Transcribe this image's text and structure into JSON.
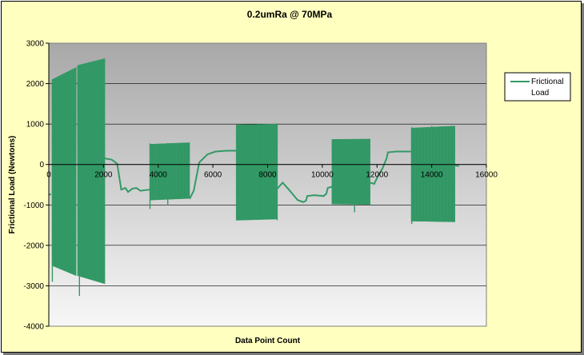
{
  "chart_data": {
    "type": "line",
    "title": "0.2umRa @ 70MPa",
    "xlabel": "Data Point Count",
    "ylabel": "Frictional Load (Newtons)",
    "xlim": [
      0,
      16000
    ],
    "ylim": [
      -4000,
      3000
    ],
    "x_ticks": [
      0,
      2000,
      4000,
      6000,
      8000,
      10000,
      12000,
      14000,
      16000
    ],
    "y_ticks": [
      -4000,
      -3000,
      -2000,
      -1000,
      0,
      1000,
      2000,
      3000
    ],
    "grid": "horizontal",
    "legend_position": "right",
    "series": [
      {
        "name": "Frictional Load",
        "color": "#339966",
        "oscillation_blocks": [
          {
            "x_start": 120,
            "x_end": 1000,
            "upper_start": 2100,
            "upper_end": 2400,
            "lower_start": -2500,
            "lower_end": -2750
          },
          {
            "x_start": 1050,
            "x_end": 2050,
            "upper_start": 2450,
            "upper_end": 2620,
            "lower_start": -2750,
            "lower_end": -2950
          },
          {
            "x_start": 3700,
            "x_end": 5150,
            "upper_start": 500,
            "upper_end": 540,
            "lower_start": -880,
            "lower_end": -840
          },
          {
            "x_start": 6850,
            "x_end": 8350,
            "upper_start": 980,
            "upper_end": 1000,
            "lower_start": -1380,
            "lower_end": -1350
          },
          {
            "x_start": 10350,
            "x_end": 11750,
            "upper_start": 620,
            "upper_end": 630,
            "lower_start": -980,
            "lower_end": -990
          },
          {
            "x_start": 13250,
            "x_end": 14850,
            "upper_start": 900,
            "upper_end": 950,
            "lower_start": -1400,
            "lower_end": -1420
          }
        ],
        "spikes": [
          {
            "x": 130,
            "min": -2900,
            "max": 2100
          },
          {
            "x": 1120,
            "min": -3250,
            "max": 2450
          },
          {
            "x": 3700,
            "min": -1100,
            "max": 520
          },
          {
            "x": 4350,
            "min": -1000,
            "max": 530
          },
          {
            "x": 7680,
            "min": -1250,
            "max": 1000
          },
          {
            "x": 8350,
            "min": -1380,
            "max": 1020
          },
          {
            "x": 11180,
            "min": -1180,
            "max": 630
          },
          {
            "x": 13270,
            "min": -1470,
            "max": 920
          },
          {
            "x": 14000,
            "min": -1350,
            "max": 950
          }
        ],
        "connectors": [
          [
            [
              0,
              -750
            ],
            [
              80,
              -730
            ]
          ],
          [
            [
              2050,
              150
            ],
            [
              2300,
              120
            ],
            [
              2500,
              20
            ],
            [
              2650,
              -620
            ],
            [
              2800,
              -580
            ],
            [
              2900,
              -680
            ],
            [
              3050,
              -600
            ],
            [
              3200,
              -580
            ],
            [
              3350,
              -650
            ],
            [
              3700,
              -620
            ]
          ],
          [
            [
              5150,
              -850
            ],
            [
              5300,
              -650
            ],
            [
              5500,
              50
            ],
            [
              5800,
              250
            ],
            [
              6100,
              320
            ],
            [
              6500,
              340
            ],
            [
              6850,
              340
            ]
          ],
          [
            [
              8350,
              -600
            ],
            [
              8550,
              -450
            ],
            [
              8750,
              -600
            ],
            [
              8900,
              -720
            ],
            [
              9100,
              -880
            ],
            [
              9300,
              -930
            ],
            [
              9400,
              -900
            ],
            [
              9450,
              -780
            ],
            [
              9700,
              -760
            ],
            [
              10050,
              -780
            ],
            [
              10150,
              -720
            ],
            [
              10200,
              -580
            ],
            [
              10350,
              -550
            ]
          ],
          [
            [
              11750,
              -450
            ],
            [
              11900,
              -480
            ],
            [
              12050,
              -260
            ],
            [
              12200,
              -100
            ],
            [
              12350,
              150
            ],
            [
              12400,
              300
            ],
            [
              12700,
              320
            ],
            [
              13250,
              320
            ]
          ],
          [
            [
              14850,
              -20
            ],
            [
              15000,
              -40
            ]
          ]
        ]
      }
    ]
  }
}
